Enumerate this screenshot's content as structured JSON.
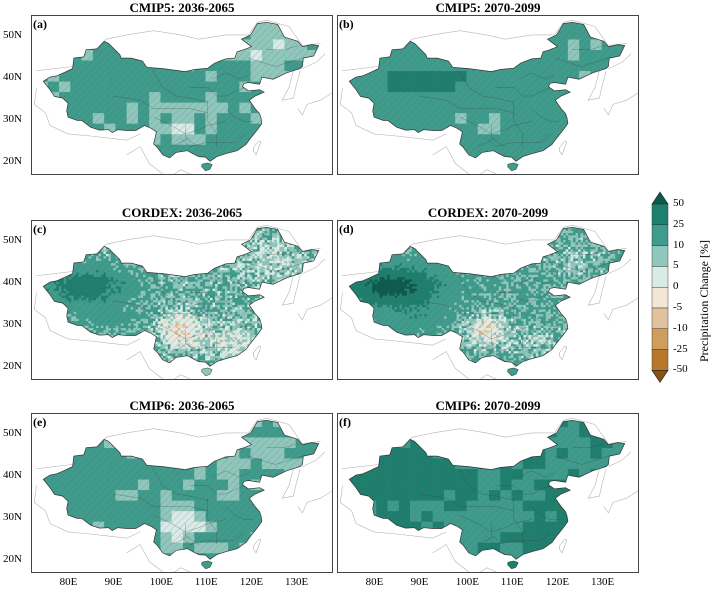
{
  "colors": {
    "p50": "#0d5a4d",
    "p25": "#1e7f6e",
    "p10": "#3f9c8c",
    "p5": "#90c7bc",
    "p0": "#d8ebe6",
    "n0": "#f3e6d6",
    "n5": "#e0c39c",
    "n10": "#cf9d5c",
    "n25": "#b9772c",
    "n50": "#8a5212",
    "hatch": "#555555",
    "border": "#333333"
  },
  "panels": [
    {
      "label": "(a)",
      "title": "CMIP5: 2036-2065",
      "pattern": "cmip5a",
      "resolution": "coarse"
    },
    {
      "label": "(b)",
      "title": "CMIP5: 2070-2099",
      "pattern": "cmip5b",
      "resolution": "coarse"
    },
    {
      "label": "(c)",
      "title": "CORDEX: 2036-2065",
      "pattern": "cordexa",
      "resolution": "fine"
    },
    {
      "label": "(d)",
      "title": "CORDEX: 2070-2099",
      "pattern": "cordexb",
      "resolution": "fine"
    },
    {
      "label": "(e)",
      "title": "CMIP6: 2036-2065",
      "pattern": "cmip6a",
      "resolution": "coarse"
    },
    {
      "label": "(f)",
      "title": "CMIP6: 2070-2099",
      "pattern": "cmip6b",
      "resolution": "coarse"
    }
  ],
  "lat_ticks": [
    "50N",
    "40N",
    "30N",
    "20N"
  ],
  "lon_ticks": [
    "80E",
    "90E",
    "100E",
    "110E",
    "120E",
    "130E"
  ],
  "colorbar": {
    "title": "Precipitation Change [%]",
    "levels": [
      "50",
      "25",
      "10",
      "5",
      "0",
      "-5",
      "-10",
      "-25",
      "-50"
    ],
    "colors_top_to_bottom": [
      "#0d5a4d",
      "#1e7f6e",
      "#3f9c8c",
      "#90c7bc",
      "#d8ebe6",
      "#f3e6d6",
      "#e0c39c",
      "#cf9d5c",
      "#b9772c",
      "#8a5212"
    ]
  }
}
